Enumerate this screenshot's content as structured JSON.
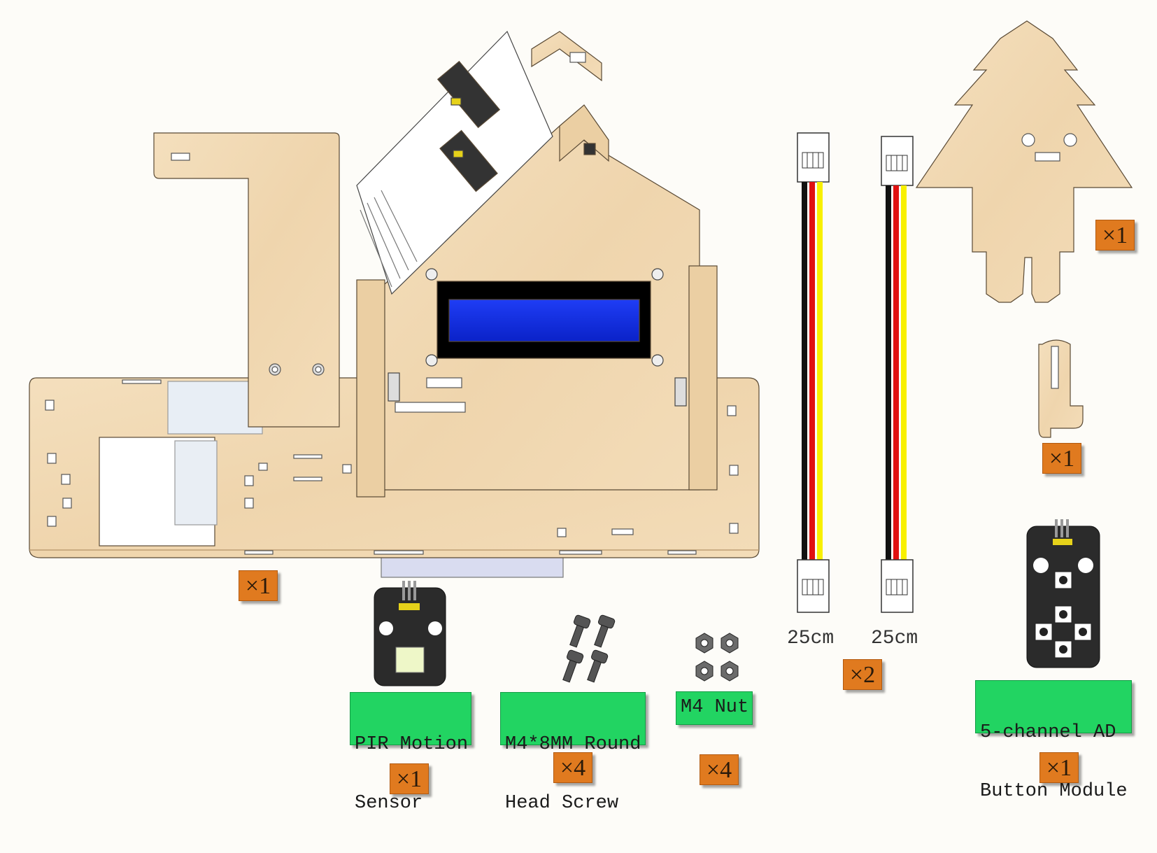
{
  "parts": {
    "base_qty": "×1",
    "tree_qty": "×1",
    "clip_qty": "×1",
    "cable_qty": "×2",
    "cable_left_length": "25cm",
    "cable_right_length": "25cm",
    "pir": {
      "label_line1": "PIR Motion",
      "label_line2": "Sensor",
      "qty": "×1"
    },
    "screw": {
      "label_line1": "M4*8MM Round",
      "label_line2": "Head Screw",
      "qty": "×4"
    },
    "nut": {
      "label": "M4 Nut",
      "qty": "×4"
    },
    "button_module": {
      "label_line1": "5-channel AD",
      "label_line2": "Button Module",
      "qty": "×1"
    }
  },
  "colors": {
    "wood": "#f1d9b3",
    "wood_edge": "#c9a877",
    "label_green": "#22d462",
    "badge_orange": "#e07a1f",
    "lcd_blue": "#0a2fe0",
    "module_black": "#2b2b2b"
  }
}
